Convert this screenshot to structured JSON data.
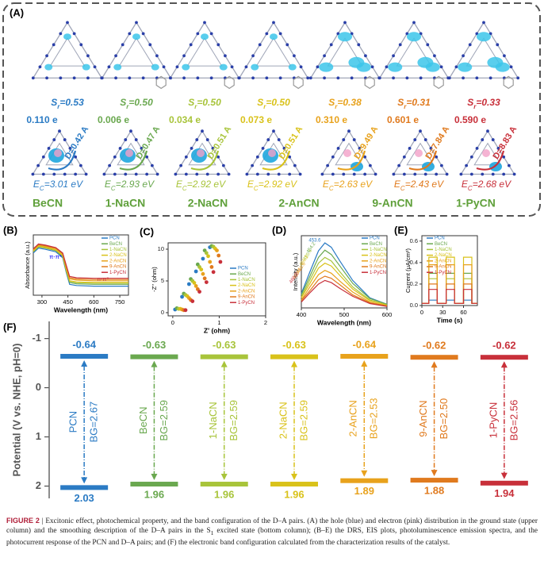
{
  "panel_a": {
    "label": "(A)",
    "name_color": "#5fa03a",
    "columns": [
      {
        "sr": [
          "S",
          "r",
          "=0.53"
        ],
        "electrons": "0.110 e",
        "distance": "D=0.42 A",
        "ec": [
          "E",
          "C",
          "=3.01 eV"
        ],
        "name": "BeCN",
        "color": "#2b7bc4"
      },
      {
        "sr": [
          "S",
          "r",
          "=0.50"
        ],
        "electrons": "0.006 e",
        "distance": "D=0.47 A",
        "ec": [
          "E",
          "C",
          "=2.93 eV"
        ],
        "name": "1-NaCN",
        "color": "#6aa84f"
      },
      {
        "sr": [
          "S",
          "r",
          "=0.50"
        ],
        "electrons": "0.034 e",
        "distance": "D=0.51 A",
        "ec": [
          "E",
          "C",
          "=2.92 eV"
        ],
        "name": "2-NaCN",
        "color": "#a8c43a"
      },
      {
        "sr": [
          "S",
          "r",
          "=0.50"
        ],
        "electrons": "0.073 e",
        "distance": "D=0.51 A",
        "ec": [
          "E",
          "C",
          "=2.92 eV"
        ],
        "name": "2-AnCN",
        "color": "#d9c21a"
      },
      {
        "sr": [
          "S",
          "r",
          "=0.38"
        ],
        "electrons": "0.310 e",
        "distance": "D=9.49 A",
        "ec": [
          "E",
          "C",
          "=2.63 eV"
        ],
        "name": "9-AnCN",
        "color": "#e8a21c"
      },
      {
        "sr": [
          "S",
          "r",
          "=0.31"
        ],
        "electrons": "0.601 e",
        "distance": "D=7.84 A",
        "ec": [
          "E",
          "C",
          "=2.43 eV"
        ],
        "name": "1-PyCN",
        "color": "#e07a1e"
      },
      {
        "sr": [
          "S",
          "r",
          "=0.33"
        ],
        "electrons": "0.590 e",
        "distance": "D=8.83 A",
        "ec": [
          "E",
          "C",
          "=2.68 eV"
        ],
        "name": null,
        "color": "#c8303a"
      }
    ]
  },
  "chart_data": [
    {
      "type": "line",
      "label": "(B)",
      "x_label": "Wavelength (nm)",
      "y_label": "Absorbance (a.u.)",
      "xlim": [
        250,
        800
      ],
      "xticks": [
        300,
        450,
        600,
        750
      ],
      "ylim": [
        0,
        1
      ],
      "annotations": [
        "π-π*",
        "n-π*"
      ],
      "x": [
        250,
        280,
        320,
        380,
        420,
        440,
        460,
        500,
        600,
        700,
        800
      ],
      "series": [
        {
          "name": "PCN",
          "color": "#2b7bc4",
          "values": [
            0.7,
            0.78,
            0.76,
            0.72,
            0.62,
            0.38,
            0.18,
            0.16,
            0.15,
            0.15,
            0.15
          ]
        },
        {
          "name": "BeCN",
          "color": "#6aa84f",
          "values": [
            0.72,
            0.8,
            0.78,
            0.74,
            0.64,
            0.4,
            0.21,
            0.19,
            0.18,
            0.18,
            0.18
          ]
        },
        {
          "name": "1-NaCN",
          "color": "#a8c43a",
          "values": [
            0.74,
            0.82,
            0.8,
            0.75,
            0.65,
            0.42,
            0.23,
            0.21,
            0.2,
            0.2,
            0.2
          ]
        },
        {
          "name": "2-NaCN",
          "color": "#d9c21a",
          "values": [
            0.73,
            0.81,
            0.79,
            0.75,
            0.66,
            0.43,
            0.24,
            0.22,
            0.21,
            0.21,
            0.21
          ]
        },
        {
          "name": "2-AnCN",
          "color": "#e8a21c",
          "values": [
            0.75,
            0.83,
            0.81,
            0.77,
            0.68,
            0.46,
            0.27,
            0.25,
            0.24,
            0.24,
            0.24
          ]
        },
        {
          "name": "9-AnCN",
          "color": "#e07a1e",
          "values": [
            0.76,
            0.84,
            0.82,
            0.78,
            0.69,
            0.48,
            0.29,
            0.27,
            0.26,
            0.26,
            0.26
          ]
        },
        {
          "name": "1-PyCN",
          "color": "#c8303a",
          "values": [
            0.77,
            0.85,
            0.83,
            0.79,
            0.7,
            0.5,
            0.31,
            0.29,
            0.28,
            0.28,
            0.28
          ]
        }
      ]
    },
    {
      "type": "scatter",
      "label": "(C)",
      "x_label": "Z' (ohm)",
      "y_label": "-Z'' (ohm)",
      "xlim": [
        -0.1,
        2
      ],
      "xticks": [
        0,
        1,
        2
      ],
      "ylim": [
        -0.5,
        11
      ],
      "yticks": [
        0,
        5,
        10
      ],
      "x": [
        0.05,
        0.2,
        0.35,
        0.5,
        0.65,
        0.8
      ],
      "series": [
        {
          "name": "PCN",
          "color": "#2b7bc4",
          "values": [
            0.5,
            2.5,
            4.5,
            6.5,
            8.5,
            10.3
          ]
        },
        {
          "name": "BeCN",
          "color": "#6aa84f",
          "values": [
            0.7,
            3.0,
            5.3,
            7.6,
            9.8,
            10.5
          ]
        },
        {
          "name": "1-NaCN",
          "color": "#a8c43a",
          "values": [
            0.6,
            2.8,
            5.0,
            7.2,
            9.4,
            10.4
          ]
        },
        {
          "name": "2-NaCN",
          "color": "#d9c21a",
          "values": [
            0.6,
            2.6,
            4.7,
            6.8,
            8.9,
            10.1
          ]
        },
        {
          "name": "2-AnCN",
          "color": "#e8a21c",
          "values": [
            0.5,
            2.3,
            4.2,
            6.1,
            8.0,
            9.8
          ]
        },
        {
          "name": "9-AnCN",
          "color": "#e07a1e",
          "values": [
            0.4,
            2.0,
            3.7,
            5.4,
            7.2,
            9.0
          ]
        },
        {
          "name": "1-PyCN",
          "color": "#c8303a",
          "values": [
            0.4,
            1.8,
            3.3,
            4.8,
            6.4,
            8.0
          ]
        }
      ]
    },
    {
      "type": "line",
      "label": "(D)",
      "x_label": "Wavelength (nm)",
      "y_label": "Intensity (a.u.)",
      "xlim": [
        400,
        600
      ],
      "xticks": [
        400,
        500,
        600
      ],
      "ylim": [
        0,
        1
      ],
      "x": [
        400,
        420,
        440,
        455,
        470,
        490,
        520,
        560,
        600
      ],
      "peak_labels": [
        453.6,
        454.2,
        455.4,
        456.2,
        458.6,
        459.4,
        460.2
      ],
      "series": [
        {
          "name": "PCN",
          "color": "#2b7bc4",
          "values": [
            0.2,
            0.5,
            0.79,
            0.9,
            0.84,
            0.65,
            0.38,
            0.14,
            0.05
          ]
        },
        {
          "name": "BeCN",
          "color": "#6aa84f",
          "values": [
            0.18,
            0.44,
            0.7,
            0.8,
            0.74,
            0.58,
            0.34,
            0.13,
            0.05
          ]
        },
        {
          "name": "1-NaCN",
          "color": "#a8c43a",
          "values": [
            0.15,
            0.39,
            0.62,
            0.7,
            0.65,
            0.5,
            0.29,
            0.11,
            0.04
          ]
        },
        {
          "name": "2-NaCN",
          "color": "#d9c21a",
          "values": [
            0.14,
            0.34,
            0.55,
            0.62,
            0.58,
            0.45,
            0.26,
            0.1,
            0.04
          ]
        },
        {
          "name": "2-AnCN",
          "color": "#e8a21c",
          "values": [
            0.11,
            0.29,
            0.46,
            0.52,
            0.48,
            0.37,
            0.22,
            0.08,
            0.03
          ]
        },
        {
          "name": "9-AnCN",
          "color": "#e07a1e",
          "values": [
            0.1,
            0.24,
            0.39,
            0.44,
            0.41,
            0.32,
            0.18,
            0.07,
            0.03
          ]
        },
        {
          "name": "1-PyCN",
          "color": "#c8303a",
          "values": [
            0.08,
            0.21,
            0.33,
            0.38,
            0.35,
            0.27,
            0.16,
            0.06,
            0.02
          ]
        }
      ]
    },
    {
      "type": "line",
      "label": "(E)",
      "x_label": "Time (s)",
      "y_label": "Current (μA/cm²)",
      "xlim": [
        0,
        80
      ],
      "xticks": [
        0,
        30,
        60
      ],
      "ylim": [
        0,
        0.65
      ],
      "yticks": [
        {
          "value": 0,
          "label": "0.0"
        },
        0.2,
        0.4,
        0.6
      ],
      "x": [
        0,
        10,
        10,
        22,
        22,
        35,
        35,
        47,
        47,
        60,
        60,
        72,
        72,
        80
      ],
      "series": [
        {
          "name": "PCN",
          "color": "#2b7bc4",
          "values": [
            0.02,
            0.02,
            0.05,
            0.05,
            0.02,
            0.02,
            0.05,
            0.05,
            0.02,
            0.02,
            0.05,
            0.05,
            0.02,
            0.02
          ]
        },
        {
          "name": "BeCN",
          "color": "#6aa84f",
          "values": [
            0.02,
            0.02,
            0.3,
            0.3,
            0.02,
            0.02,
            0.3,
            0.3,
            0.02,
            0.02,
            0.3,
            0.3,
            0.02,
            0.02
          ]
        },
        {
          "name": "1-NaCN",
          "color": "#a8c43a",
          "values": [
            0.02,
            0.02,
            0.25,
            0.25,
            0.02,
            0.02,
            0.25,
            0.25,
            0.02,
            0.02,
            0.25,
            0.25,
            0.02,
            0.02
          ]
        },
        {
          "name": "2-NaCN",
          "color": "#d9c21a",
          "values": [
            0.02,
            0.02,
            0.45,
            0.45,
            0.02,
            0.02,
            0.45,
            0.45,
            0.02,
            0.02,
            0.45,
            0.45,
            0.02,
            0.02
          ]
        },
        {
          "name": "2-AnCN",
          "color": "#e8a21c",
          "values": [
            0.02,
            0.02,
            0.38,
            0.38,
            0.02,
            0.02,
            0.38,
            0.38,
            0.02,
            0.02,
            0.38,
            0.38,
            0.02,
            0.02
          ]
        },
        {
          "name": "9-AnCN",
          "color": "#e07a1e",
          "values": [
            0.02,
            0.02,
            0.2,
            0.2,
            0.02,
            0.02,
            0.2,
            0.2,
            0.02,
            0.02,
            0.2,
            0.2,
            0.02,
            0.02
          ]
        },
        {
          "name": "1-PyCN",
          "color": "#c8303a",
          "values": [
            0.02,
            0.02,
            0.15,
            0.15,
            0.02,
            0.02,
            0.15,
            0.15,
            0.02,
            0.02,
            0.15,
            0.15,
            0.02,
            0.02
          ]
        }
      ]
    },
    {
      "type": "band",
      "label": "(F)",
      "y_label": "Potential (V vs. NHE, pH=0)",
      "ylim": [
        -1.35,
        2.25
      ],
      "y_inverted": true,
      "yticks": [
        -1,
        0,
        1,
        2
      ],
      "categories": [
        "PCN",
        "BeCN",
        "1-NaCN",
        "2-NaCN",
        "2-AnCN",
        "9-AnCN",
        "1-PyCN"
      ],
      "colors": [
        "#2b7bc4",
        "#6aa84f",
        "#a8c43a",
        "#d9c21a",
        "#e8a21c",
        "#e07a1e",
        "#c8303a"
      ],
      "cb": [
        -0.64,
        -0.63,
        -0.63,
        -0.63,
        -0.64,
        -0.62,
        -0.62
      ],
      "vb": [
        2.03,
        1.96,
        1.96,
        1.96,
        1.89,
        1.88,
        1.94
      ],
      "bg_labels": [
        "BG=2.67",
        "BG=2.59",
        "BG=2.59",
        "BG=2.59",
        "BG=2.53",
        "BG=2.50",
        "BG=2.56"
      ]
    }
  ],
  "caption": {
    "label": "FIGURE 2",
    "separator": "|",
    "text_before": "Excitonic effect, photochemical property, and the band configuration of the D–A pairs. (A) the hole (blue) and electron (pink) distribution in the ground state (upper column) and the smoothing description of the D–A pairs in the S",
    "subscript": "1",
    "text_after": " excited state (bottom column); (B–E) the DRS, EIS plots, photoluminescence emission spectra, and the photocurrent response of the PCN and D–A pairs; and (F) the electronic band configuration calculated from the characterization results of the catalyst."
  }
}
